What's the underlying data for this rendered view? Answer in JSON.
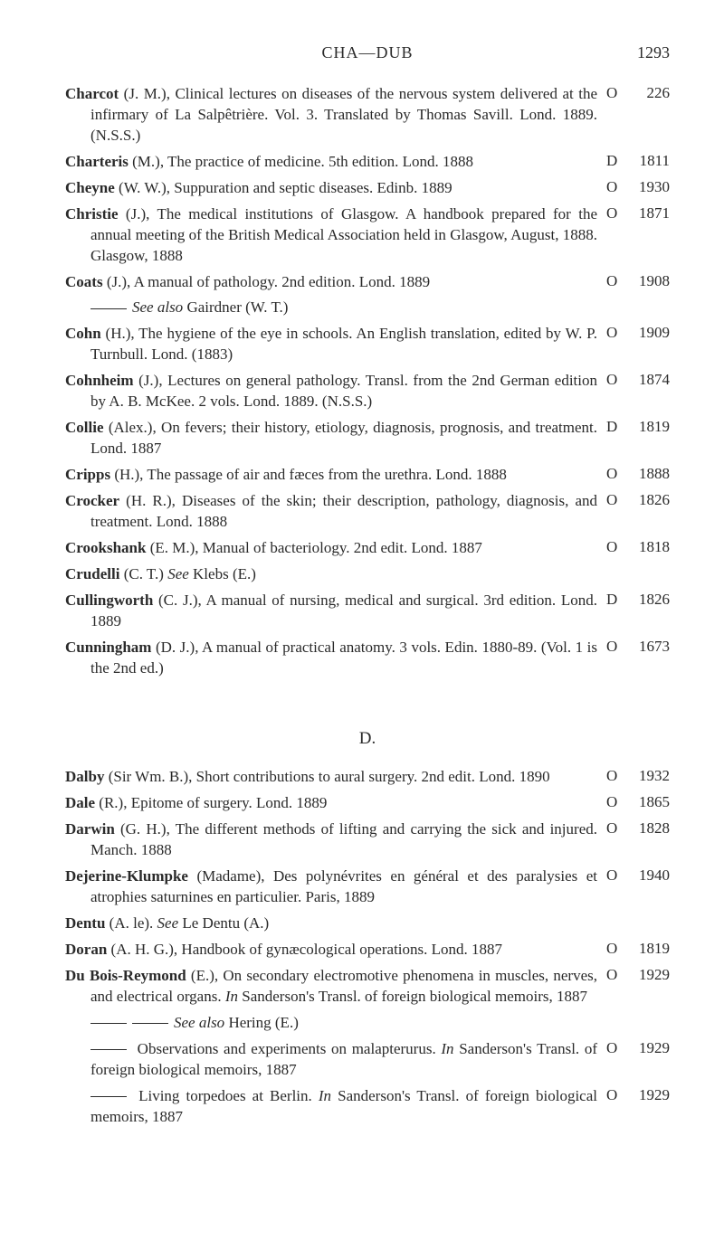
{
  "header": {
    "running_head": "CHA—DUB",
    "page_number": "1293"
  },
  "sections": [
    {
      "letter": null,
      "entries": [
        {
          "author": "Charcot",
          "body": " (J. M.), Clinical lectures on diseases of the nervous system delivered at the infirmary of La Salpêtrière. Vol. 3. Translated by Thomas Savill. Lond. 1889. (N.S.S.)",
          "code": "O",
          "num": "226"
        },
        {
          "author": "Charteris",
          "body": " (M.), The practice of medicine. 5th edition. Lond. 1888",
          "code": "D",
          "num": "1811"
        },
        {
          "author": "Cheyne",
          "body": " (W. W.), Suppuration and septic diseases. Edinb. 1889",
          "code": "O",
          "num": "1930"
        },
        {
          "author": "Christie",
          "body": " (J.), The medical institutions of Glasgow. A handbook prepared for the annual meeting of the British Medical Association held in Glasgow, August, 1888. Glasgow, 1888",
          "code": "O",
          "num": "1871"
        },
        {
          "author": "Coats",
          "body": " (J.), A manual of pathology. 2nd edition. Lond. 1889",
          "code": "O",
          "num": "1908"
        },
        {
          "see": true,
          "body": "See also Gairdner (W. T.)"
        },
        {
          "author": "Cohn",
          "body": " (H.), The hygiene of the eye in schools. An English translation, edited by W. P. Turnbull. Lond. (1883)",
          "code": "O",
          "num": "1909"
        },
        {
          "author": "Cohnheim",
          "body": " (J.), Lectures on general pathology. Transl. from the 2nd German edition by A. B. McKee. 2 vols. Lond. 1889. (N.S.S.)",
          "code": "O",
          "num": "1874"
        },
        {
          "author": "Collie",
          "body": " (Alex.), On fevers; their history, etiology, diagnosis, prognosis, and treatment. Lond. 1887",
          "code": "D",
          "num": "1819"
        },
        {
          "author": "Cripps",
          "body": " (H.), The passage of air and fæces from the urethra. Lond. 1888",
          "code": "O",
          "num": "1888"
        },
        {
          "author": "Crocker",
          "body": " (H. R.), Diseases of the skin; their description, pathology, diagnosis, and treatment. Lond. 1888",
          "code": "O",
          "num": "1826"
        },
        {
          "author": "Crookshank",
          "body": " (E. M.), Manual of bacteriology. 2nd edit. Lond. 1887",
          "code": "O",
          "num": "1818"
        },
        {
          "author": "Crudelli",
          "body": " (C. T.) See Klebs (E.)",
          "see_inline": true
        },
        {
          "author": "Cullingworth",
          "body": " (C. J.), A manual of nursing, medical and surgical. 3rd edition. Lond. 1889",
          "code": "D",
          "num": "1826"
        },
        {
          "author": "Cunningham",
          "body": " (D. J.), A manual of practical anatomy. 3 vols. Edin. 1880-89. (Vol. 1 is the 2nd ed.)",
          "code": "O",
          "num": "1673"
        }
      ]
    },
    {
      "letter": "D.",
      "entries": [
        {
          "author": "Dalby",
          "body": " (Sir Wm. B.), Short contributions to aural surgery. 2nd edit. Lond. 1890",
          "code": "O",
          "num": "1932"
        },
        {
          "author": "Dale",
          "body": " (R.), Epitome of surgery. Lond. 1889",
          "code": "O",
          "num": "1865"
        },
        {
          "author": "Darwin",
          "body": " (G. H.), The different methods of lifting and carrying the sick and injured. Manch. 1888",
          "code": "O",
          "num": "1828"
        },
        {
          "author": "Dejerine-Klumpke",
          "body": " (Madame), Des polynévrites en général et des paralysies et atrophies saturnines en particulier. Paris, 1889",
          "code": "O",
          "num": "1940"
        },
        {
          "author": "Dentu",
          "body": " (A. le). See Le Dentu (A.)",
          "see_inline": true
        },
        {
          "author": "Doran",
          "body": " (A. H. G.), Handbook of gynæcological operations. Lond. 1887",
          "code": "O",
          "num": "1819"
        },
        {
          "author": "Du Bois-Reymond",
          "body": " (E.), On secondary electromotive phenomena in muscles, nerves, and electrical organs. In Sanderson's Transl. of foreign biological memoirs, 1887",
          "has_in": true,
          "code": "O",
          "num": "1929"
        },
        {
          "see": true,
          "dashes": 2,
          "body": "See also Hering (E.)"
        },
        {
          "see": true,
          "dashes": 1,
          "body_plain": " Observations and experiments on malapterurus. In Sanderson's Transl. of foreign biological memoirs, 1887",
          "has_in": true,
          "code": "O",
          "num": "1929"
        },
        {
          "see": true,
          "dashes": 1,
          "body_plain": " Living torpedoes at Berlin. In Sanderson's Transl. of foreign biological memoirs, 1887",
          "has_in": true,
          "code": "O",
          "num": "1929"
        }
      ]
    }
  ]
}
